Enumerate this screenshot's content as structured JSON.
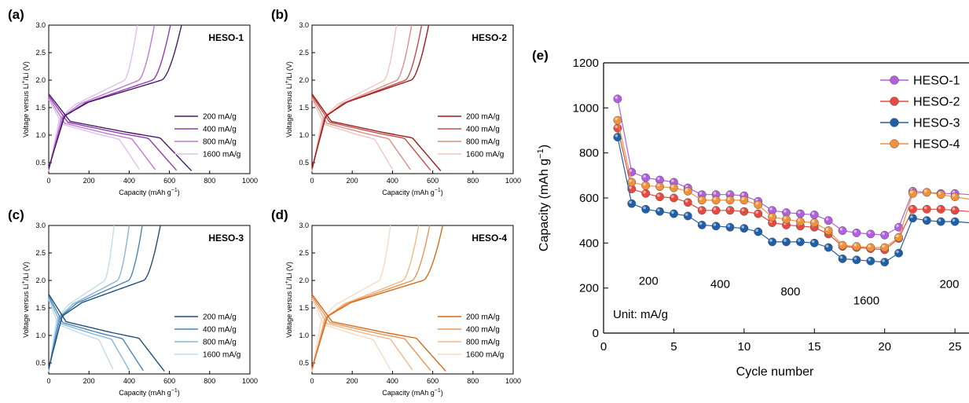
{
  "panels_charge_discharge": [
    {
      "letter": "(a)",
      "sample": "HESO-1",
      "xlabel": "Capacity (mAh g",
      "ylabel": "Voltage versus Li",
      "xlim": [
        0,
        1000
      ],
      "ylim": [
        0.3,
        3.0
      ],
      "xticks": [
        "0",
        "200",
        "400",
        "600",
        "800",
        "1000"
      ],
      "yticks": [
        "0.5",
        "1.0",
        "1.5",
        "2.0",
        "2.5",
        "3.0"
      ],
      "colors": [
        "#4a1a66",
        "#8e3cb4",
        "#c07ad9",
        "#e0c0ee"
      ],
      "legend": [
        "200 mA/g",
        "400 mA/g",
        "800 mA/g",
        "1600 mA/g"
      ],
      "charge_end": [
        660,
        605,
        525,
        440
      ],
      "discharge_end": [
        710,
        635,
        530,
        450
      ]
    },
    {
      "letter": "(b)",
      "sample": "HESO-2",
      "xlabel": "Capacity (mAh g",
      "ylabel": "Voltage versus Li",
      "xlim": [
        0,
        1000
      ],
      "ylim": [
        0.3,
        3.0
      ],
      "xticks": [
        "0",
        "200",
        "400",
        "600",
        "800",
        "1000"
      ],
      "yticks": [
        "0.5",
        "1.0",
        "1.5",
        "2.0",
        "2.5",
        "3.0"
      ],
      "colors": [
        "#9e1b1b",
        "#c0504d",
        "#df8f88",
        "#f1c6c0"
      ],
      "legend": [
        "200 mA/g",
        "400 mA/g",
        "800 mA/g",
        "1600 mA/g"
      ],
      "charge_end": [
        580,
        545,
        495,
        420
      ],
      "discharge_end": [
        640,
        590,
        490,
        400
      ]
    },
    {
      "letter": "(c)",
      "sample": "HESO-3",
      "xlabel": "Capacity (mAh g",
      "ylabel": "Voltage versus Li",
      "xlim": [
        0,
        1000
      ],
      "ylim": [
        0.3,
        3.0
      ],
      "xticks": [
        "0",
        "200",
        "400",
        "600",
        "800",
        "1000"
      ],
      "yticks": [
        "0.5",
        "1.0",
        "1.5",
        "2.0",
        "2.5",
        "3.0"
      ],
      "colors": [
        "#1f4f7a",
        "#4a86b8",
        "#86b6d8",
        "#c2dcee"
      ],
      "legend": [
        "200 mA/g",
        "400 mA/g",
        "800 mA/g",
        "1600 mA/g"
      ],
      "charge_end": [
        555,
        465,
        400,
        325
      ],
      "discharge_end": [
        575,
        470,
        400,
        320
      ]
    },
    {
      "letter": "(d)",
      "sample": "HESO-4",
      "xlabel": "Capacity (mAh g",
      "ylabel": "Voltage versus Li",
      "xlim": [
        0,
        1000
      ],
      "ylim": [
        0.3,
        3.0
      ],
      "xticks": [
        "0",
        "200",
        "400",
        "600",
        "800",
        "1000"
      ],
      "yticks": [
        "0.5",
        "1.0",
        "1.5",
        "2.0",
        "2.5",
        "3.0"
      ],
      "colors": [
        "#d96a1a",
        "#e8955a",
        "#f1b98c",
        "#f8dcc4"
      ],
      "legend": [
        "200 mA/g",
        "400 mA/g",
        "800 mA/g",
        "1600 mA/g"
      ],
      "charge_end": [
        650,
        585,
        530,
        390
      ],
      "discharge_end": [
        665,
        590,
        500,
        390
      ]
    }
  ],
  "panel_rate": {
    "letter": "(e)",
    "xlabel": "Cycle number",
    "ylabel": "Capacity (mAh g",
    "xlim": [
      0,
      26
    ],
    "ylim": [
      0,
      1200
    ],
    "xticks": [
      "0",
      "5",
      "10",
      "15",
      "20",
      "25"
    ],
    "yticks": [
      "0",
      "200",
      "400",
      "600",
      "800",
      "1000",
      "1200"
    ],
    "rate_labels": [
      "200",
      "400",
      "800",
      "1600",
      "200"
    ],
    "unit_label": "Unit: mA/g"
  },
  "chart_data": {
    "type": "line",
    "title": "",
    "xlabel": "Cycle number",
    "ylabel": "Capacity (mAh g⁻¹)",
    "xlim": [
      0,
      26
    ],
    "ylim": [
      0,
      1200
    ],
    "legend_position": "top-right",
    "x": [
      1,
      2,
      3,
      4,
      5,
      6,
      7,
      8,
      9,
      10,
      11,
      12,
      13,
      14,
      15,
      16,
      17,
      18,
      19,
      20,
      21,
      22,
      23,
      24,
      25,
      26
    ],
    "series": [
      {
        "name": "HESO-1",
        "color": "#b15ee0",
        "values": [
          1040,
          715,
          690,
          680,
          670,
          645,
          615,
          615,
          615,
          610,
          585,
          545,
          535,
          530,
          525,
          500,
          455,
          445,
          440,
          435,
          470,
          630,
          625,
          620,
          620,
          615
        ]
      },
      {
        "name": "HESO-2",
        "color": "#e8483f",
        "values": [
          910,
          640,
          620,
          605,
          600,
          580,
          545,
          545,
          545,
          540,
          530,
          490,
          480,
          475,
          470,
          440,
          385,
          380,
          375,
          370,
          420,
          550,
          550,
          550,
          545,
          540
        ]
      },
      {
        "name": "HESO-3",
        "color": "#1f5fa8",
        "values": [
          870,
          575,
          550,
          540,
          530,
          520,
          480,
          475,
          470,
          465,
          450,
          405,
          405,
          405,
          400,
          380,
          330,
          325,
          320,
          315,
          355,
          510,
          500,
          495,
          495,
          490
        ]
      },
      {
        "name": "HESO-4",
        "color": "#f0913c",
        "values": [
          945,
          670,
          655,
          650,
          645,
          630,
          590,
          590,
          590,
          590,
          570,
          515,
          505,
          495,
          490,
          455,
          390,
          385,
          380,
          380,
          425,
          620,
          625,
          615,
          605,
          595
        ]
      }
    ]
  }
}
